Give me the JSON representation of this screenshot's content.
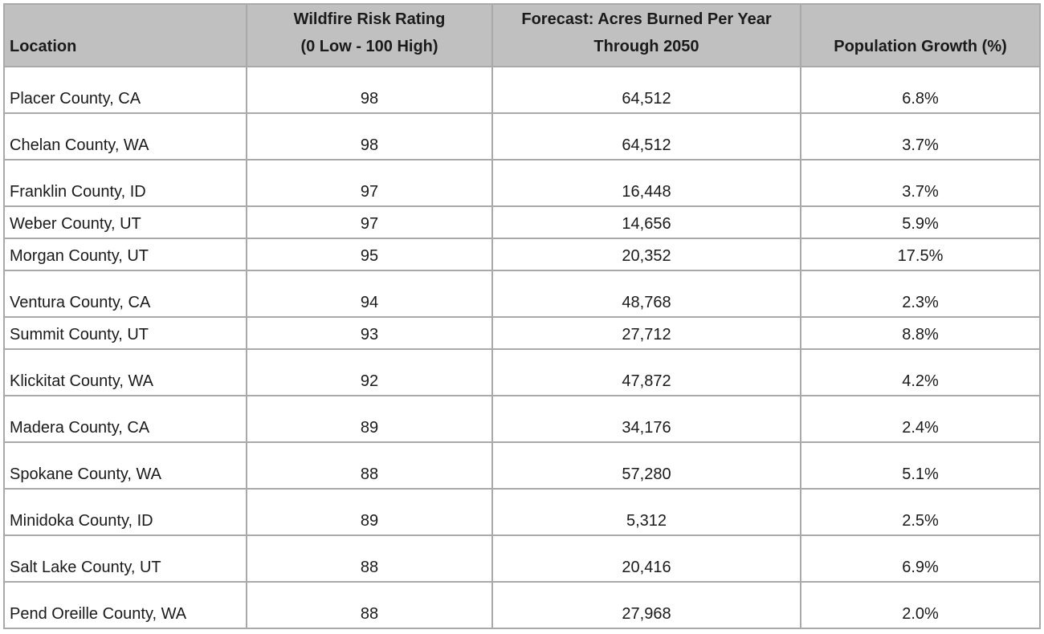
{
  "table": {
    "headers": {
      "location": "Location",
      "risk_line1": "Wildfire Risk Rating",
      "risk_line2": "(0 Low - 100 High)",
      "acres_line1": "Forecast: Acres Burned Per Year",
      "acres_line2": "Through 2050",
      "population": "Population Growth (%)"
    },
    "rows": [
      {
        "location": "Placer County, CA",
        "risk": "98",
        "acres": "64,512",
        "growth": "6.8%"
      },
      {
        "location": "Chelan County, WA",
        "risk": "98",
        "acres": "64,512",
        "growth": "3.7%"
      },
      {
        "location": "Franklin County, ID",
        "risk": "97",
        "acres": "16,448",
        "growth": "3.7%"
      },
      {
        "location": "Weber County, UT",
        "risk": "97",
        "acres": "14,656",
        "growth": "5.9%"
      },
      {
        "location": "Morgan County, UT",
        "risk": "95",
        "acres": "20,352",
        "growth": "17.5%"
      },
      {
        "location": "Ventura County, CA",
        "risk": "94",
        "acres": "48,768",
        "growth": "2.3%"
      },
      {
        "location": "Summit County, UT",
        "risk": "93",
        "acres": "27,712",
        "growth": "8.8%"
      },
      {
        "location": "Klickitat County, WA",
        "risk": "92",
        "acres": "47,872",
        "growth": "4.2%"
      },
      {
        "location": "Madera County, CA",
        "risk": "89",
        "acres": "34,176",
        "growth": "2.4%"
      },
      {
        "location": "Spokane County, WA",
        "risk": "88",
        "acres": "57,280",
        "growth": "5.1%"
      },
      {
        "location": "Minidoka County, ID",
        "risk": "89",
        "acres": "5,312",
        "growth": "2.5%"
      },
      {
        "location": "Salt Lake County, UT",
        "risk": "88",
        "acres": "20,416",
        "growth": "6.9%"
      },
      {
        "location": "Pend Oreille County, WA",
        "risk": "88",
        "acres": "27,968",
        "growth": "2.0%"
      }
    ]
  }
}
